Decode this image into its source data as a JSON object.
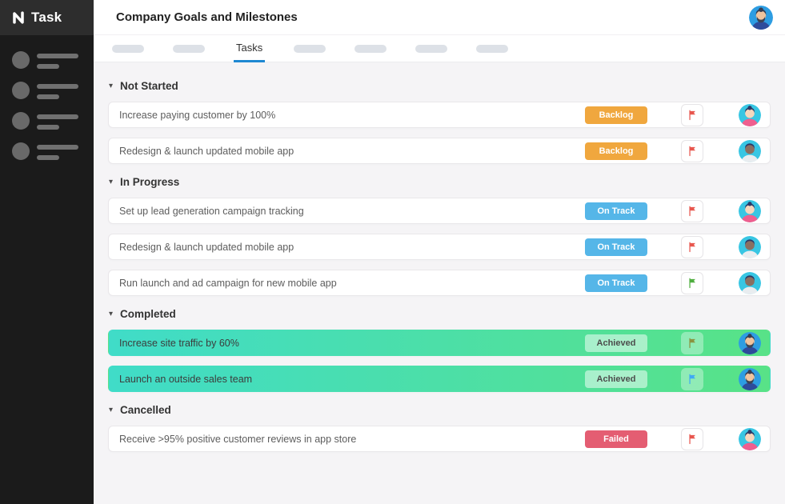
{
  "app": {
    "logo_text": "Task",
    "title": "Company Goals and Milestones"
  },
  "sidebar": {
    "skeleton_item_count": 4
  },
  "tabs": {
    "active_label": "Tasks",
    "placeholders_before": 2,
    "placeholders_after": 4,
    "active_underline_color": "#1e88d2"
  },
  "header": {
    "user_avatar": "male-beard"
  },
  "colors": {
    "sidebar_bg": "#1b1b1b",
    "sidebar_logo_bg": "#2d2d2d",
    "content_bg": "#f5f4f6",
    "completed_gradient_start": "#40dcc8",
    "completed_gradient_end": "#58e287"
  },
  "avatars": {
    "female": {
      "bg": "#38c6e3",
      "hair": "#2b3a67",
      "skin": "#f6d7bd",
      "shirt": "#ef5f8f",
      "bun": true,
      "beard": null
    },
    "male-dark": {
      "bg": "#38c6e3",
      "hair": "#2b3a67",
      "skin": "#8a6f61",
      "shirt": "#e9edf0",
      "bun": false,
      "beard": null
    },
    "male-beard": {
      "bg": "#2d9de2",
      "hair": "#353d52",
      "skin": "#efc49e",
      "shirt": "#2d4b9b",
      "bun": true,
      "beard": "#3b4455"
    }
  },
  "sections": [
    {
      "label": "Not Started",
      "tasks": [
        {
          "title": "Increase paying customer by 100%",
          "status_label": "Backlog",
          "status_bg": "#f0a73e",
          "status_fg": "#ffffff",
          "flag_color": "#e8564e",
          "avatar": "female",
          "completed": false
        },
        {
          "title": "Redesign & launch updated mobile app",
          "status_label": "Backlog",
          "status_bg": "#f0a73e",
          "status_fg": "#ffffff",
          "flag_color": "#e8564e",
          "avatar": "male-dark",
          "completed": false
        }
      ]
    },
    {
      "label": "In Progress",
      "tasks": [
        {
          "title": "Set up lead generation campaign tracking",
          "status_label": "On Track",
          "status_bg": "#55b6e8",
          "status_fg": "#ffffff",
          "flag_color": "#e8564e",
          "avatar": "female",
          "completed": false
        },
        {
          "title": "Redesign & launch updated mobile app",
          "status_label": "On Track",
          "status_bg": "#55b6e8",
          "status_fg": "#ffffff",
          "flag_color": "#e8564e",
          "avatar": "male-dark",
          "completed": false
        },
        {
          "title": "Run launch and ad campaign for new mobile app",
          "status_label": "On Track",
          "status_bg": "#55b6e8",
          "status_fg": "#ffffff",
          "flag_color": "#4fae3f",
          "avatar": "male-dark",
          "completed": false
        }
      ]
    },
    {
      "label": "Completed",
      "tasks": [
        {
          "title": "Increase site traffic by 60%",
          "status_label": "Achieved",
          "status_bg": "rgba(255,255,255,0.5)",
          "status_fg": "#4c4c4c",
          "flag_color": "#8a9440",
          "avatar": "male-beard",
          "completed": true
        },
        {
          "title": "Launch an outside sales team",
          "status_label": "Achieved",
          "status_bg": "rgba(255,255,255,0.5)",
          "status_fg": "#4c4c4c",
          "flag_color": "#3fa9f5",
          "avatar": "male-beard",
          "completed": true
        }
      ]
    },
    {
      "label": "Cancelled",
      "tasks": [
        {
          "title": "Receive >95% positive customer reviews in app store",
          "status_label": "Failed",
          "status_bg": "#e45d72",
          "status_fg": "#ffffff",
          "flag_color": "#e8564e",
          "avatar": "female",
          "completed": false
        }
      ]
    }
  ]
}
